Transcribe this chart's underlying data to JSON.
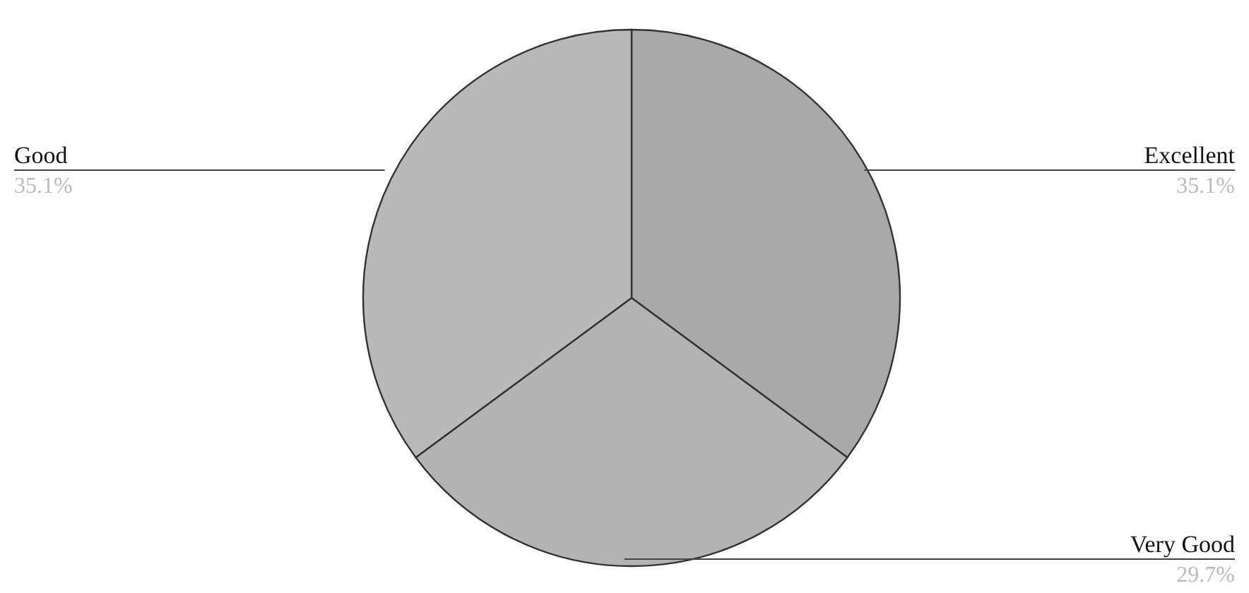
{
  "chart_data": {
    "type": "pie",
    "categories": [
      "Excellent",
      "Very Good",
      "Good"
    ],
    "values": [
      35.1,
      29.7,
      35.1
    ],
    "value_labels": [
      "35.1%",
      "29.7%",
      "35.1%"
    ],
    "colors": [
      "#a9a9a9",
      "#b3b3b3",
      "#b9b9b9"
    ]
  }
}
